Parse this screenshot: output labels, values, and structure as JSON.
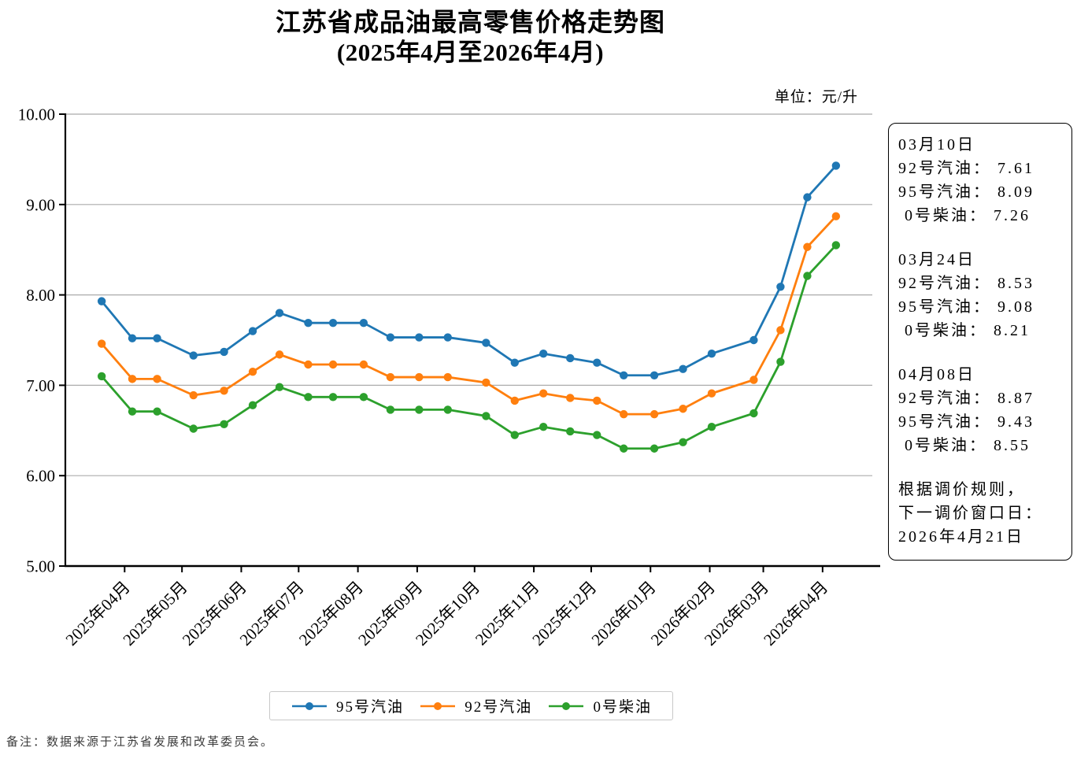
{
  "header": {
    "title_line1": "江苏省成品油最高零售价格走势图",
    "title_line2": "(2025年4月至2026年4月)",
    "unit_label": "单位：元/升"
  },
  "chart_data": {
    "type": "line",
    "title": "江苏省成品油最高零售价格走势图 (2025年4月至2026年4月)",
    "y_unit": "元/升",
    "ylim": [
      5.0,
      10.0
    ],
    "grid": "horizontal-only",
    "legend_position": "bottom-center",
    "y_ticks": [
      {
        "value": 5,
        "label": "5.00"
      },
      {
        "value": 6,
        "label": "6.00"
      },
      {
        "value": 7,
        "label": "7.00"
      },
      {
        "value": 8,
        "label": "8.00"
      },
      {
        "value": 9,
        "label": "9.00"
      },
      {
        "value": 10,
        "label": "10.00"
      }
    ],
    "x_tick_labels": [
      "2025年04月",
      "2025年05月",
      "2025年06月",
      "2025年07月",
      "2025年08月",
      "2025年09月",
      "2025年10月",
      "2025年11月",
      "2025年12月",
      "2026年01月",
      "2026年02月",
      "2026年03月",
      "2026年04月"
    ],
    "x_dates_estimated": [
      "2025-03-20",
      "2025-04-05",
      "2025-04-18",
      "2025-05-07",
      "2025-05-23",
      "2025-06-07",
      "2025-06-21",
      "2025-07-06",
      "2025-07-19",
      "2025-08-04",
      "2025-08-18",
      "2025-09-02",
      "2025-09-17",
      "2025-10-07",
      "2025-10-22",
      "2025-11-06",
      "2025-11-20",
      "2025-12-04",
      "2025-12-18",
      "2026-01-03",
      "2026-01-18",
      "2026-02-02",
      "2026-02-24",
      "2026-03-10",
      "2026-03-24",
      "2026-04-08"
    ],
    "series": [
      {
        "name": "95号汽油",
        "color": "#1f77b4",
        "values": [
          7.93,
          7.52,
          7.52,
          7.33,
          7.37,
          7.6,
          7.8,
          7.69,
          7.69,
          7.69,
          7.53,
          7.53,
          7.53,
          7.47,
          7.25,
          7.35,
          7.3,
          7.25,
          7.11,
          7.11,
          7.18,
          7.35,
          7.5,
          8.09,
          9.08,
          9.43
        ]
      },
      {
        "name": "92号汽油",
        "color": "#ff7f0e",
        "values": [
          7.46,
          7.07,
          7.07,
          6.89,
          6.94,
          7.15,
          7.34,
          7.23,
          7.23,
          7.23,
          7.09,
          7.09,
          7.09,
          7.03,
          6.83,
          6.91,
          6.86,
          6.83,
          6.68,
          6.68,
          6.74,
          6.91,
          7.06,
          7.61,
          8.53,
          8.87
        ]
      },
      {
        "name": "0号柴油",
        "color": "#2ca02c",
        "values": [
          7.1,
          6.71,
          6.71,
          6.52,
          6.57,
          6.78,
          6.98,
          6.87,
          6.87,
          6.87,
          6.73,
          6.73,
          6.73,
          6.66,
          6.45,
          6.54,
          6.49,
          6.45,
          6.3,
          6.3,
          6.37,
          6.54,
          6.69,
          7.26,
          8.21,
          8.55
        ]
      }
    ]
  },
  "annotation": {
    "sections": [
      {
        "title": "03月10日",
        "lines": [
          "92号汽油： 7.61",
          "95号汽油： 8.09",
          " 0号柴油： 7.26"
        ]
      },
      {
        "title": "03月24日",
        "lines": [
          "92号汽油： 8.53",
          "95号汽油： 9.08",
          " 0号柴油： 8.21"
        ]
      },
      {
        "title": "04月08日",
        "lines": [
          "92号汽油： 8.87",
          "95号汽油： 9.43",
          " 0号柴油： 8.55"
        ]
      }
    ],
    "note_lines": [
      "根据调价规则，",
      "下一调价窗口日：",
      "2026年4月21日"
    ]
  },
  "footnote": "备注：数据来源于江苏省发展和改革委员会。"
}
